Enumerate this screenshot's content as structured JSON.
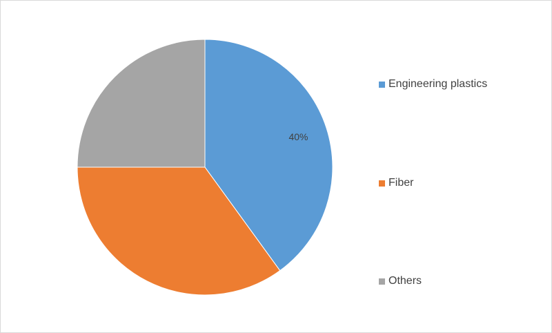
{
  "chart_data": {
    "type": "pie",
    "categories": [
      "Engineering plastics",
      "Fiber",
      "Others"
    ],
    "values": [
      40,
      35,
      25
    ],
    "data_labels": [
      "40%",
      "",
      ""
    ],
    "colors": [
      "#5b9bd5",
      "#ed7d31",
      "#a5a5a5"
    ],
    "legend_position": "right",
    "start_angle_deg": 0,
    "direction": "clockwise"
  }
}
